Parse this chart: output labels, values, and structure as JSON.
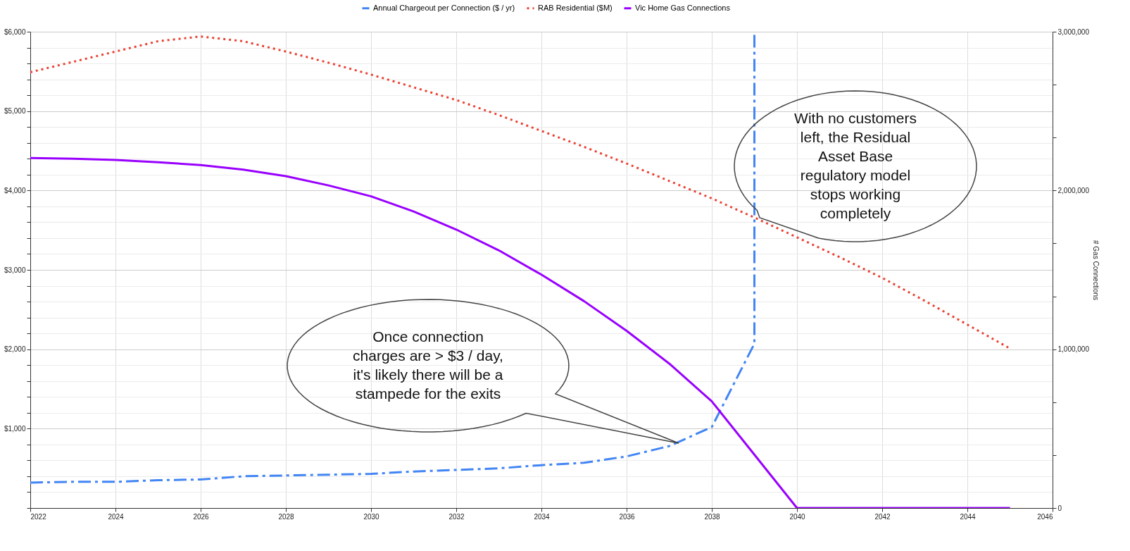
{
  "chart_data": {
    "type": "line",
    "y2label": "# Gas Connections",
    "legend": "top",
    "grid": true,
    "xlim": [
      2022,
      2046
    ],
    "xticks": [
      2022,
      2024,
      2026,
      2028,
      2030,
      2032,
      2034,
      2036,
      2038,
      2040,
      2042,
      2044,
      2046
    ],
    "ylim": [
      0,
      6000
    ],
    "yticks": [
      {
        "value": 0,
        "label": null
      },
      {
        "value": 200,
        "label": null
      },
      {
        "value": 400,
        "label": null
      },
      {
        "value": 600,
        "label": null
      },
      {
        "value": 800,
        "label": null
      },
      {
        "value": 1000,
        "label": "$1,000"
      },
      {
        "value": 1200,
        "label": null
      },
      {
        "value": 1400,
        "label": null
      },
      {
        "value": 1600,
        "label": null
      },
      {
        "value": 1800,
        "label": null
      },
      {
        "value": 2000,
        "label": "$2,000"
      },
      {
        "value": 2200,
        "label": null
      },
      {
        "value": 2400,
        "label": null
      },
      {
        "value": 2600,
        "label": null
      },
      {
        "value": 2800,
        "label": null
      },
      {
        "value": 3000,
        "label": "$3,000"
      },
      {
        "value": 3200,
        "label": null
      },
      {
        "value": 3400,
        "label": null
      },
      {
        "value": 3600,
        "label": null
      },
      {
        "value": 3800,
        "label": null
      },
      {
        "value": 4000,
        "label": "$4,000"
      },
      {
        "value": 4200,
        "label": null
      },
      {
        "value": 4400,
        "label": null
      },
      {
        "value": 4600,
        "label": null
      },
      {
        "value": 4800,
        "label": null
      },
      {
        "value": 5000,
        "label": "$5,000"
      },
      {
        "value": 5200,
        "label": null
      },
      {
        "value": 5400,
        "label": null
      },
      {
        "value": 5600,
        "label": null
      },
      {
        "value": 5800,
        "label": null
      },
      {
        "value": 6000,
        "label": "$6,000"
      }
    ],
    "y2lim": [
      0,
      3000000
    ],
    "y2ticks": [
      {
        "value": 0,
        "label": "0"
      },
      {
        "value": 333333,
        "label": null
      },
      {
        "value": 666667,
        "label": null
      },
      {
        "value": 1000000,
        "label": "1,000,000"
      },
      {
        "value": 1333333,
        "label": null
      },
      {
        "value": 1666667,
        "label": null
      },
      {
        "value": 2000000,
        "label": "2,000,000"
      },
      {
        "value": 2333333,
        "label": null
      },
      {
        "value": 2666667,
        "label": null
      },
      {
        "value": 3000000,
        "label": "3,000,000"
      }
    ],
    "series": [
      {
        "name": "Annual Chargeout per Connection ($ / yr)",
        "color": "#4285f4",
        "line_style": "dashed",
        "x": [
          2022,
          2023,
          2024,
          2025,
          2026,
          2027,
          2028,
          2029,
          2030,
          2031,
          2032,
          2033,
          2034,
          2035,
          2036,
          2037,
          2038,
          2039,
          2039
        ],
        "values": [
          320,
          330,
          330,
          350,
          360,
          400,
          410,
          420,
          430,
          460,
          480,
          500,
          540,
          570,
          650,
          780,
          1020,
          2070,
          6000
        ]
      },
      {
        "name": "RAB Residential ($M)",
        "color": "#ea4335",
        "line_style": "dotted",
        "x": [
          2022,
          2023,
          2024,
          2025,
          2026,
          2027,
          2028,
          2029,
          2030,
          2031,
          2032,
          2033,
          2034,
          2035,
          2036,
          2037,
          2038,
          2039,
          2040,
          2041,
          2042,
          2043,
          2044,
          2045
        ],
        "values": [
          5490,
          5620,
          5750,
          5880,
          5940,
          5880,
          5750,
          5610,
          5460,
          5300,
          5140,
          4950,
          4750,
          4550,
          4340,
          4120,
          3900,
          3660,
          3410,
          3160,
          2900,
          2610,
          2310,
          2010
        ]
      },
      {
        "name": "Vic Home Gas Connections",
        "color": "#9900ff",
        "line_style": "solid",
        "axis": "y2",
        "x": [
          2022,
          2023,
          2024,
          2025,
          2026,
          2027,
          2028,
          2029,
          2030,
          2031,
          2032,
          2033,
          2034,
          2035,
          2036,
          2037,
          2038,
          2039,
          2040,
          2041,
          2042,
          2043,
          2044,
          2045
        ],
        "values": [
          2204000,
          2200000,
          2192000,
          2178000,
          2160000,
          2131000,
          2090000,
          2032000,
          1963000,
          1868000,
          1754000,
          1623000,
          1470000,
          1303000,
          1116000,
          910000,
          672000,
          336000,
          0,
          0,
          0,
          0,
          0,
          0
        ]
      }
    ],
    "annotations": [
      "Once connection\ncharges are > $3 / day,\nit's likely there will be a\nstampede for the exits",
      "With no customers\nleft, the Residual\nAsset Base\nregulatory model\nstops working\ncompletely"
    ]
  }
}
